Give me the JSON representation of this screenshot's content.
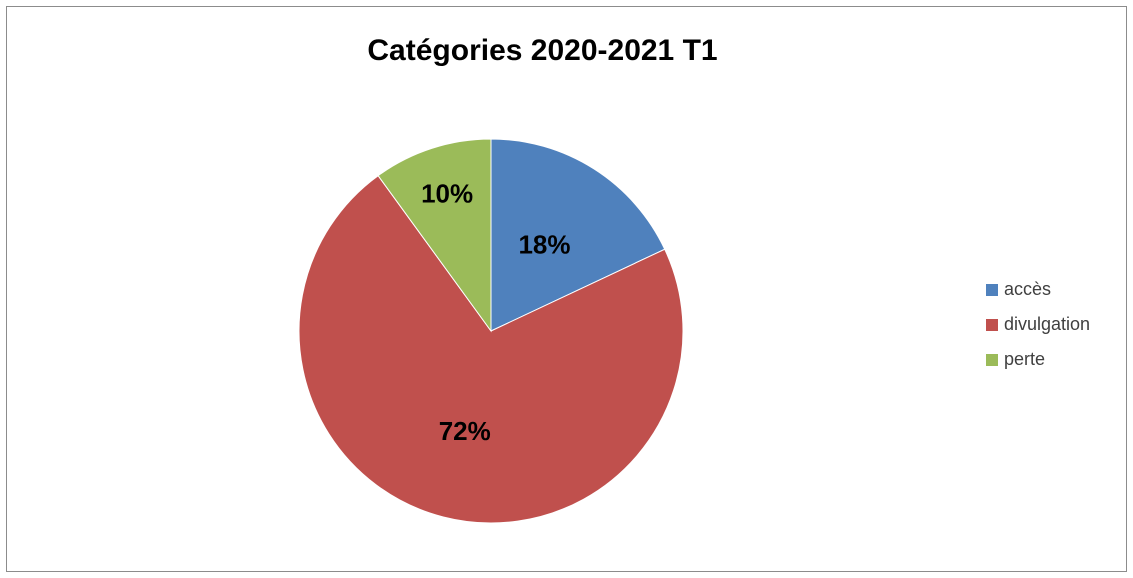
{
  "chart_data": {
    "type": "pie",
    "title": "Catégories 2020-2021 T1",
    "categories": [
      "accès",
      "divulgation",
      "perte"
    ],
    "values": [
      18,
      72,
      10
    ],
    "labels": [
      "18%",
      "72%",
      "10%"
    ],
    "colors": [
      "#4f81bd",
      "#c0504d",
      "#9bbb59"
    ],
    "legend_position": "right",
    "start_angle_deg": 0,
    "direction": "clockwise"
  }
}
